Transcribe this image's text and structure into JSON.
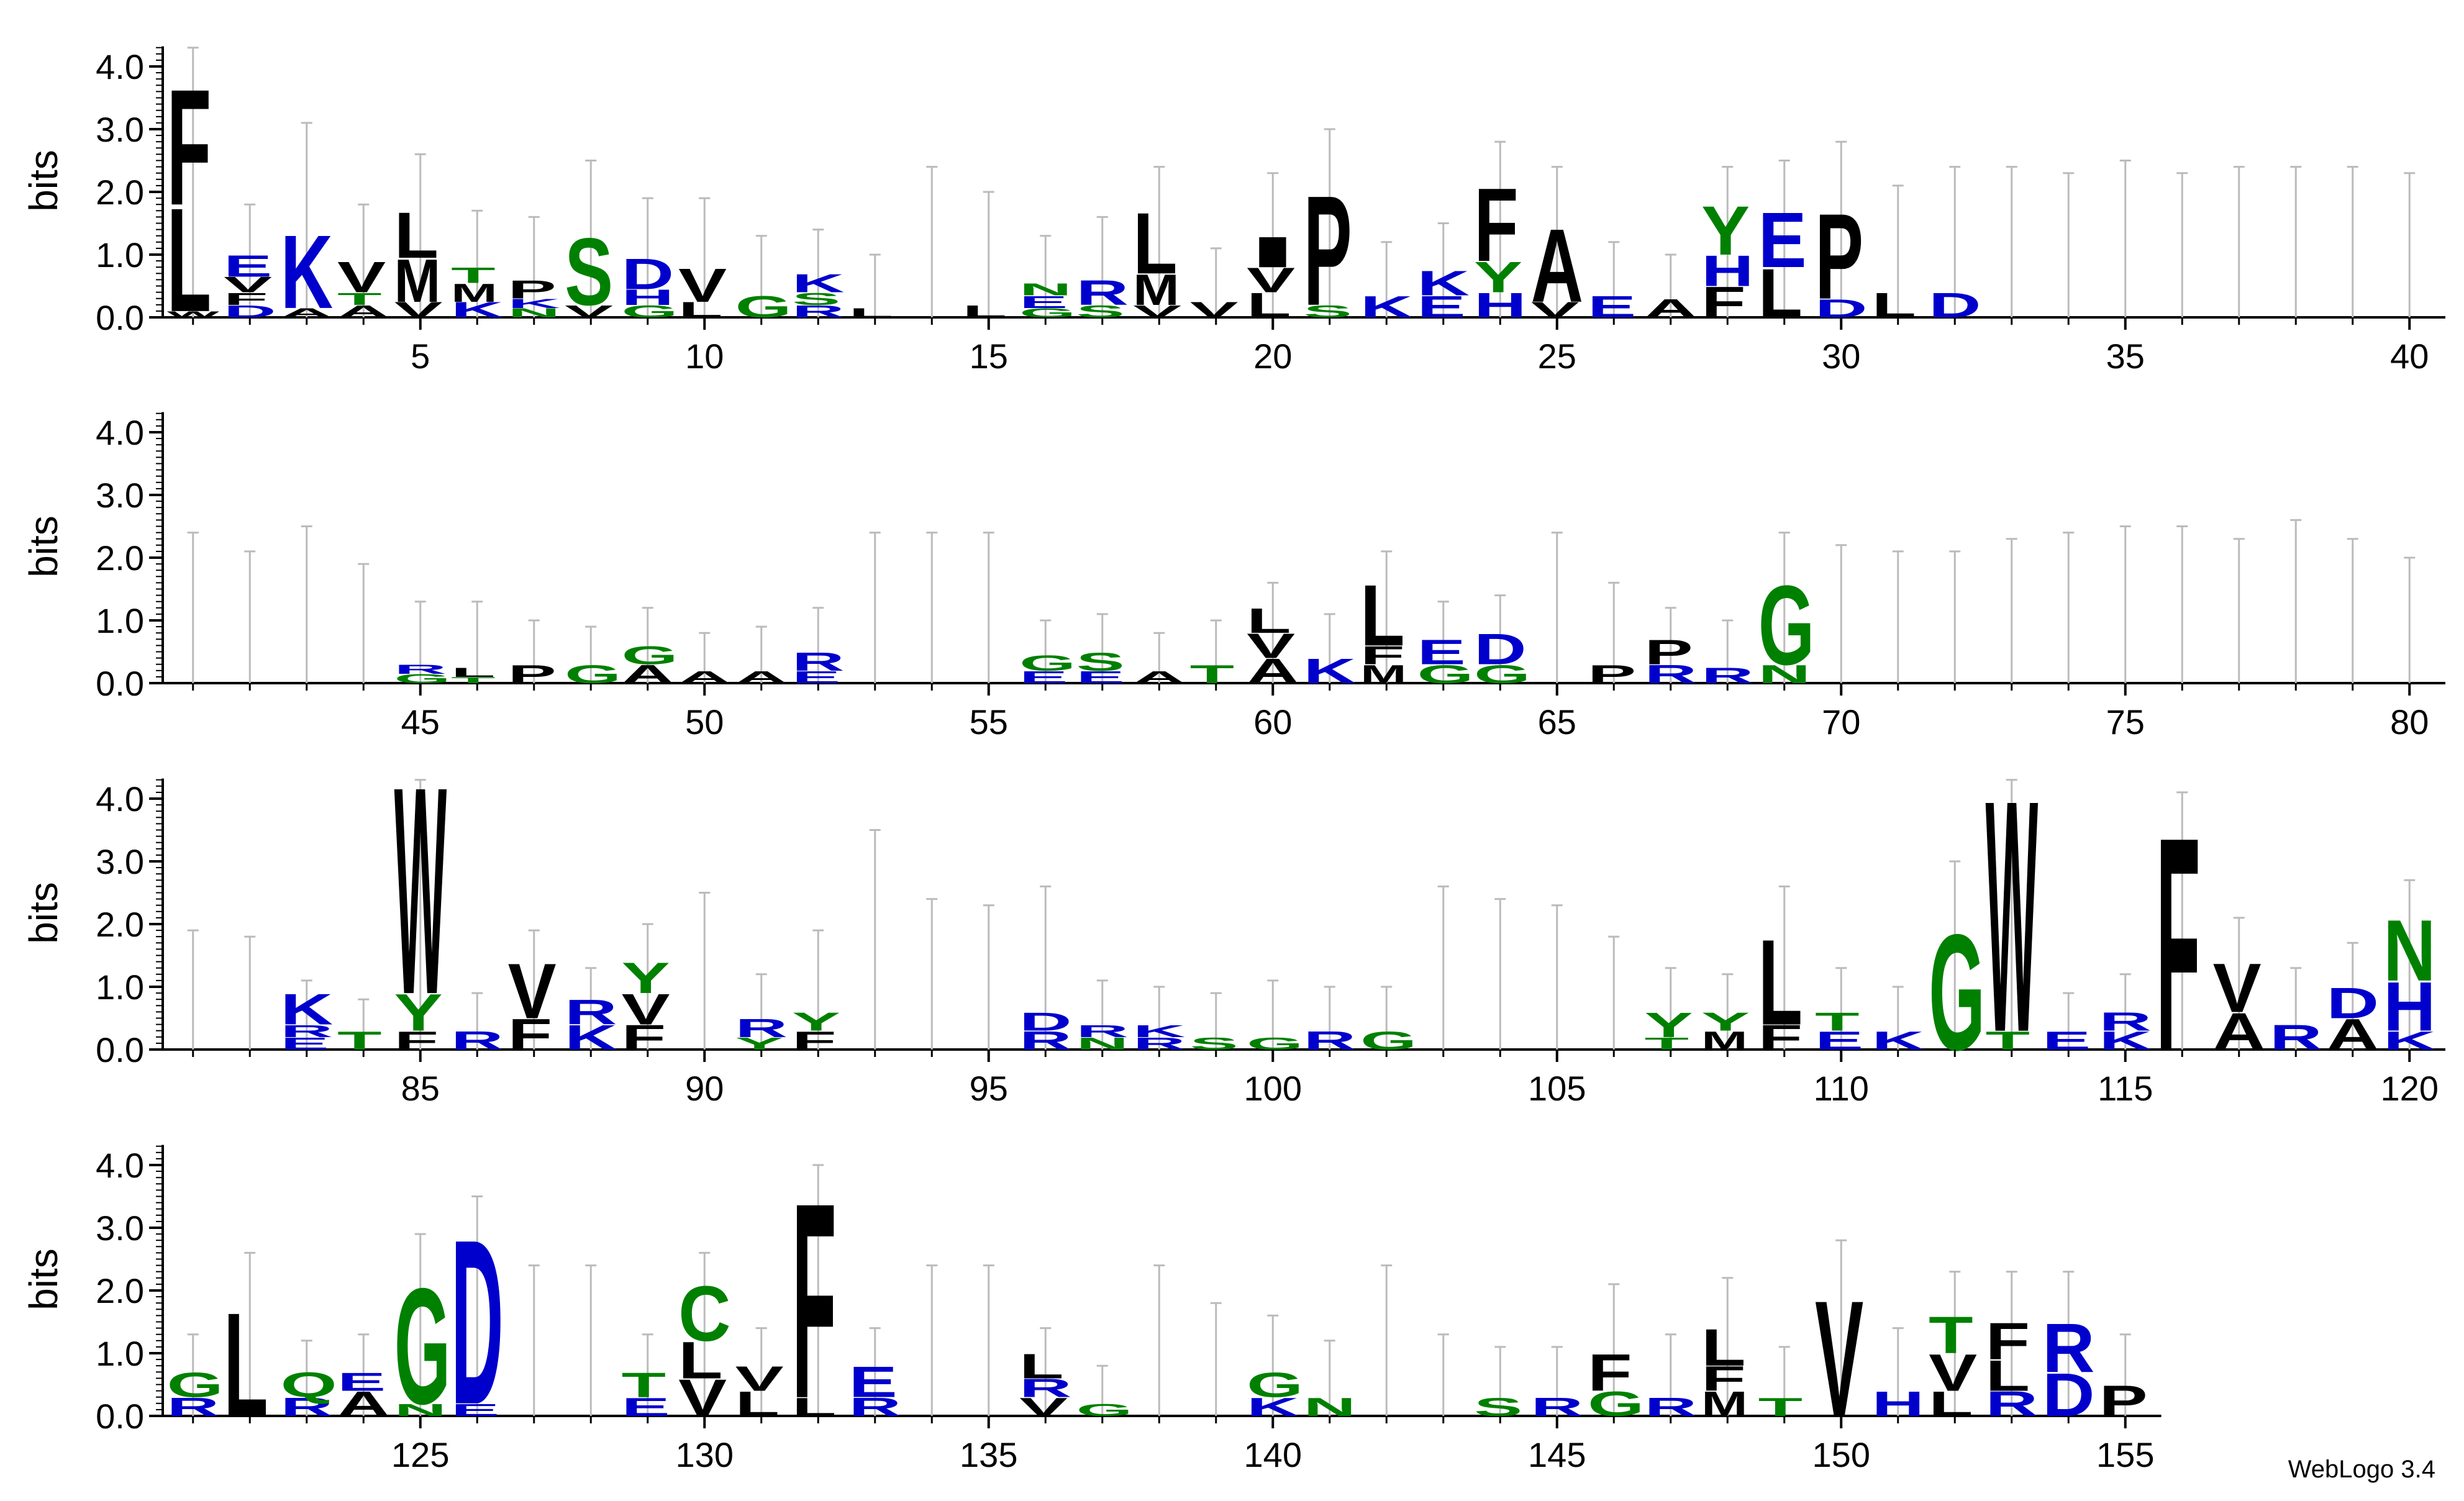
{
  "footer": "WebLogo 3.4",
  "chart_data": {
    "type": "sequence_logo",
    "ylabel": "bits",
    "ylim": [
      0,
      4.32
    ],
    "yticks": [
      "0.0",
      "1.0",
      "2.0",
      "3.0",
      "4.0"
    ],
    "colors": {
      "acidic_basic": "#0000cc",
      "polar": "#008000",
      "hydrophobic": "#000000",
      "error_bar": "#bbbbbb"
    },
    "rows": [
      {
        "start": 1,
        "end": 40,
        "xticks": [
          5,
          10,
          15,
          20,
          25,
          30,
          35,
          40
        ]
      },
      {
        "start": 41,
        "end": 80,
        "xticks": [
          45,
          50,
          55,
          60,
          65,
          70,
          75,
          80
        ]
      },
      {
        "start": 81,
        "end": 120,
        "xticks": [
          85,
          90,
          95,
          100,
          105,
          110,
          115,
          120
        ]
      },
      {
        "start": 121,
        "end": 155,
        "xticks": [
          125,
          130,
          135,
          140,
          145,
          150,
          155
        ]
      }
    ],
    "positions": {
      "1": [
        [
          "W",
          0.1
        ],
        [
          "L",
          1.7
        ],
        [
          "F",
          1.9
        ]
      ],
      "2": [
        [
          "D",
          0.2
        ],
        [
          "F",
          0.2
        ],
        [
          "V",
          0.25
        ],
        [
          "E",
          0.35
        ]
      ],
      "3": [
        [
          "A",
          0.15
        ],
        [
          "K",
          1.2
        ]
      ],
      "4": [
        [
          "A",
          0.2
        ],
        [
          "T",
          0.2
        ],
        [
          "V",
          0.5
        ]
      ],
      "5": [
        [
          "V",
          0.25
        ],
        [
          "M",
          0.7
        ],
        [
          "L",
          0.75
        ]
      ],
      "6": [
        [
          "K",
          0.25
        ],
        [
          "M",
          0.3
        ],
        [
          "T",
          0.25
        ]
      ],
      "7": [
        [
          "N",
          0.15
        ],
        [
          "K",
          0.15
        ],
        [
          "P",
          0.3
        ]
      ],
      "8": [
        [
          "V",
          0.2
        ],
        [
          "S",
          1.1
        ]
      ],
      "9": [
        [
          "G",
          0.2
        ],
        [
          "H",
          0.25
        ],
        [
          "D",
          0.5
        ]
      ],
      "10": [
        [
          "L",
          0.25
        ],
        [
          "V",
          0.55
        ]
      ],
      "11": [
        [
          "G",
          0.35
        ]
      ],
      "12": [
        [
          "R",
          0.2
        ],
        [
          "S",
          0.2
        ],
        [
          "K",
          0.3
        ]
      ],
      "13": [
        [
          "L",
          0.15
        ]
      ],
      "15": [
        [
          "L",
          0.2
        ]
      ],
      "16": [
        [
          "G",
          0.15
        ],
        [
          "E",
          0.2
        ],
        [
          "N",
          0.2
        ]
      ],
      "17": [
        [
          "S",
          0.2
        ],
        [
          "R",
          0.4
        ]
      ],
      "18": [
        [
          "V",
          0.2
        ],
        [
          "M",
          0.5
        ],
        [
          "L",
          1.0
        ]
      ],
      "19": [
        [
          "V",
          0.25
        ]
      ],
      "20": [
        [
          "L",
          0.4
        ],
        [
          "V",
          0.4
        ],
        [
          "I",
          0.5
        ]
      ],
      "21": [
        [
          "S",
          0.2
        ],
        [
          "P",
          1.8
        ]
      ],
      "22": [
        [
          "K",
          0.35
        ]
      ],
      "23": [
        [
          "E",
          0.35
        ],
        [
          "K",
          0.4
        ]
      ],
      "24": [
        [
          "H",
          0.4
        ],
        [
          "Y",
          0.5
        ],
        [
          "F",
          1.2
        ]
      ],
      "25": [
        [
          "V",
          0.25
        ],
        [
          "A",
          1.2
        ]
      ],
      "26": [
        [
          "E",
          0.35
        ]
      ],
      "27": [
        [
          "A",
          0.3
        ]
      ],
      "28": [
        [
          "F",
          0.5
        ],
        [
          "H",
          0.5
        ],
        [
          "Y",
          0.8
        ]
      ],
      "29": [
        [
          "L",
          0.8
        ],
        [
          "E",
          0.9
        ]
      ],
      "30": [
        [
          "D",
          0.3
        ],
        [
          "P",
          1.4
        ]
      ],
      "31": [
        [
          "L",
          0.4
        ]
      ],
      "32": [
        [
          "D",
          0.4
        ]
      ],
      "45": [
        [
          "G",
          0.15
        ],
        [
          "R",
          0.15
        ]
      ],
      "46": [
        [
          "T",
          0.1
        ],
        [
          "L",
          0.15
        ]
      ],
      "47": [
        [
          "P",
          0.3
        ]
      ],
      "48": [
        [
          "G",
          0.3
        ]
      ],
      "49": [
        [
          "A",
          0.3
        ],
        [
          "G",
          0.3
        ]
      ],
      "50": [
        [
          "A",
          0.2
        ]
      ],
      "51": [
        [
          "A",
          0.2
        ]
      ],
      "52": [
        [
          "E",
          0.2
        ],
        [
          "R",
          0.3
        ]
      ],
      "56": [
        [
          "E",
          0.2
        ],
        [
          "G",
          0.25
        ]
      ],
      "57": [
        [
          "E",
          0.2
        ],
        [
          "S",
          0.3
        ]
      ],
      "58": [
        [
          "A",
          0.2
        ]
      ],
      "59": [
        [
          "T",
          0.3
        ]
      ],
      "60": [
        [
          "A",
          0.4
        ],
        [
          "V",
          0.4
        ],
        [
          "L",
          0.4
        ]
      ],
      "61": [
        [
          "K",
          0.4
        ]
      ],
      "62": [
        [
          "M",
          0.3
        ],
        [
          "F",
          0.3
        ],
        [
          "L",
          1.0
        ]
      ],
      "63": [
        [
          "G",
          0.3
        ],
        [
          "E",
          0.4
        ]
      ],
      "64": [
        [
          "G",
          0.3
        ],
        [
          "D",
          0.5
        ]
      ],
      "66": [
        [
          "P",
          0.3
        ]
      ],
      "67": [
        [
          "R",
          0.3
        ],
        [
          "P",
          0.4
        ]
      ],
      "68": [
        [
          "R",
          0.25
        ]
      ],
      "69": [
        [
          "N",
          0.3
        ],
        [
          "G",
          1.3
        ]
      ],
      "83": [
        [
          "E",
          0.2
        ],
        [
          "R",
          0.2
        ],
        [
          "K",
          0.5
        ]
      ],
      "84": [
        [
          "T",
          0.3
        ]
      ],
      "85": [
        [
          "F",
          0.3
        ],
        [
          "Y",
          0.6
        ],
        [
          "W",
          3.4
        ]
      ],
      "86": [
        [
          "R",
          0.3
        ]
      ],
      "87": [
        [
          "F",
          0.5
        ],
        [
          "V",
          0.9
        ]
      ],
      "88": [
        [
          "K",
          0.4
        ],
        [
          "R",
          0.4
        ]
      ],
      "89": [
        [
          "F",
          0.4
        ],
        [
          "V",
          0.5
        ],
        [
          "Y",
          0.5
        ]
      ],
      "91": [
        [
          "Y",
          0.2
        ],
        [
          "R",
          0.3
        ]
      ],
      "92": [
        [
          "F",
          0.3
        ],
        [
          "Y",
          0.3
        ]
      ],
      "96": [
        [
          "R",
          0.3
        ],
        [
          "D",
          0.3
        ]
      ],
      "97": [
        [
          "N",
          0.2
        ],
        [
          "R",
          0.2
        ]
      ],
      "98": [
        [
          "R",
          0.2
        ],
        [
          "K",
          0.2
        ]
      ],
      "99": [
        [
          "S",
          0.2
        ]
      ],
      "100": [
        [
          "G",
          0.2
        ]
      ],
      "101": [
        [
          "R",
          0.3
        ]
      ],
      "102": [
        [
          "G",
          0.3
        ]
      ],
      "107": [
        [
          "T",
          0.2
        ],
        [
          "Y",
          0.4
        ]
      ],
      "108": [
        [
          "M",
          0.3
        ],
        [
          "Y",
          0.3
        ]
      ],
      "109": [
        [
          "F",
          0.4
        ],
        [
          "L",
          1.4
        ]
      ],
      "110": [
        [
          "E",
          0.3
        ],
        [
          "T",
          0.3
        ]
      ],
      "111": [
        [
          "K",
          0.3
        ]
      ],
      "112": [
        [
          "G",
          1.9
        ]
      ],
      "113": [
        [
          "T",
          0.3
        ],
        [
          "W",
          3.8
        ]
      ],
      "114": [
        [
          "E",
          0.3
        ]
      ],
      "115": [
        [
          "K",
          0.3
        ],
        [
          "R",
          0.3
        ]
      ],
      "116": [
        [
          "F",
          3.5
        ]
      ],
      "117": [
        [
          "A",
          0.6
        ],
        [
          "V",
          0.8
        ]
      ],
      "118": [
        [
          "R",
          0.4
        ]
      ],
      "119": [
        [
          "A",
          0.5
        ],
        [
          "D",
          0.5
        ]
      ],
      "120": [
        [
          "K",
          0.3
        ],
        [
          "H",
          0.8
        ],
        [
          "N",
          1.0
        ]
      ],
      "121": [
        [
          "R",
          0.3
        ],
        [
          "G",
          0.4
        ]
      ],
      "122": [
        [
          "L",
          1.7
        ]
      ],
      "123": [
        [
          "R",
          0.3
        ],
        [
          "Q",
          0.4
        ]
      ],
      "124": [
        [
          "A",
          0.4
        ],
        [
          "E",
          0.3
        ]
      ],
      "125": [
        [
          "N",
          0.2
        ],
        [
          "G",
          1.9
        ]
      ],
      "126": [
        [
          "E",
          0.2
        ],
        [
          "D",
          2.7
        ]
      ],
      "129": [
        [
          "E",
          0.3
        ],
        [
          "T",
          0.4
        ]
      ],
      "130": [
        [
          "V",
          0.6
        ],
        [
          "L",
          0.6
        ],
        [
          "C",
          0.9
        ]
      ],
      "131": [
        [
          "L",
          0.4
        ],
        [
          "V",
          0.4
        ]
      ],
      "132": [
        [
          "L",
          0.3
        ],
        [
          "F",
          3.2
        ]
      ],
      "133": [
        [
          "R",
          0.3
        ],
        [
          "E",
          0.5
        ]
      ],
      "136": [
        [
          "V",
          0.3
        ],
        [
          "R",
          0.3
        ],
        [
          "L",
          0.4
        ]
      ],
      "137": [
        [
          "G",
          0.2
        ]
      ],
      "140": [
        [
          "K",
          0.3
        ],
        [
          "G",
          0.4
        ]
      ],
      "141": [
        [
          "N",
          0.3
        ]
      ],
      "144": [
        [
          "S",
          0.3
        ]
      ],
      "145": [
        [
          "R",
          0.3
        ]
      ],
      "146": [
        [
          "G",
          0.4
        ],
        [
          "F",
          0.6
        ]
      ],
      "147": [
        [
          "R",
          0.3
        ]
      ],
      "148": [
        [
          "M",
          0.4
        ],
        [
          "F",
          0.4
        ],
        [
          "L",
          0.6
        ]
      ],
      "149": [
        [
          "T",
          0.3
        ]
      ],
      "150": [
        [
          "V",
          1.9
        ]
      ],
      "151": [
        [
          "H",
          0.4
        ]
      ],
      "152": [
        [
          "L",
          0.4
        ],
        [
          "V",
          0.6
        ],
        [
          "T",
          0.6
        ]
      ],
      "153": [
        [
          "R",
          0.4
        ],
        [
          "L",
          0.5
        ],
        [
          "F",
          0.6
        ]
      ],
      "154": [
        [
          "D",
          0.7
        ],
        [
          "R",
          0.8
        ]
      ],
      "155": [
        [
          "P",
          0.5
        ]
      ]
    },
    "error_tops": {
      "1": 4.3,
      "2": 1.8,
      "3": 3.1,
      "4": 1.8,
      "5": 2.6,
      "6": 1.7,
      "7": 1.6,
      "8": 2.5,
      "9": 1.9,
      "10": 1.9,
      "11": 1.3,
      "12": 1.4,
      "13": 1.0,
      "14": 2.4,
      "15": 2.0,
      "16": 1.3,
      "17": 1.6,
      "18": 2.4,
      "19": 1.1,
      "20": 2.3,
      "21": 3.0,
      "22": 1.2,
      "23": 1.5,
      "24": 2.8,
      "25": 2.4,
      "26": 1.2,
      "27": 1.0,
      "28": 2.4,
      "29": 2.5,
      "30": 2.8,
      "31": 2.1,
      "32": 2.4,
      "33": 2.4,
      "34": 2.3,
      "35": 2.5,
      "36": 2.3,
      "37": 2.4,
      "38": 2.4,
      "39": 2.4,
      "40": 2.3,
      "41": 2.4,
      "42": 2.1,
      "43": 2.5,
      "44": 1.9,
      "45": 1.3,
      "46": 1.3,
      "47": 1.0,
      "48": 0.9,
      "49": 1.2,
      "50": 0.8,
      "51": 0.9,
      "52": 1.2,
      "53": 2.4,
      "54": 2.4,
      "55": 2.4,
      "56": 1.0,
      "57": 1.1,
      "58": 0.8,
      "59": 1.0,
      "60": 1.6,
      "61": 1.1,
      "62": 2.1,
      "63": 1.3,
      "64": 1.4,
      "65": 2.4,
      "66": 1.6,
      "67": 1.2,
      "68": 1.0,
      "69": 2.4,
      "70": 2.2,
      "71": 2.1,
      "72": 2.1,
      "73": 2.3,
      "74": 2.4,
      "75": 2.5,
      "76": 2.5,
      "77": 2.3,
      "78": 2.6,
      "79": 2.3,
      "80": 2.0,
      "81": 1.9,
      "82": 1.8,
      "83": 1.1,
      "84": 0.8,
      "85": 4.3,
      "86": 0.9,
      "87": 1.9,
      "88": 1.3,
      "89": 2.0,
      "90": 2.5,
      "91": 1.2,
      "92": 1.9,
      "93": 3.5,
      "94": 2.4,
      "95": 2.3,
      "96": 2.6,
      "97": 1.1,
      "98": 1.0,
      "99": 0.9,
      "100": 1.1,
      "101": 1.0,
      "102": 1.0,
      "103": 2.6,
      "104": 2.4,
      "105": 2.3,
      "106": 1.8,
      "107": 1.3,
      "108": 1.2,
      "109": 2.6,
      "110": 1.3,
      "111": 1.0,
      "112": 3.0,
      "113": 4.3,
      "114": 0.9,
      "115": 1.2,
      "116": 4.1,
      "117": 2.1,
      "118": 1.3,
      "119": 1.7,
      "120": 2.7,
      "121": 1.3,
      "122": 2.6,
      "123": 1.2,
      "124": 1.3,
      "125": 2.9,
      "126": 3.5,
      "127": 2.4,
      "128": 2.4,
      "129": 1.3,
      "130": 2.6,
      "131": 1.4,
      "132": 4.0,
      "133": 1.4,
      "134": 2.4,
      "135": 2.4,
      "136": 1.4,
      "137": 0.8,
      "138": 2.4,
      "139": 1.8,
      "140": 1.6,
      "141": 1.2,
      "142": 2.4,
      "143": 1.3,
      "144": 1.1,
      "145": 1.1,
      "146": 2.1,
      "147": 1.3,
      "148": 2.2,
      "149": 1.1,
      "150": 2.8,
      "151": 1.4,
      "152": 2.3,
      "153": 2.3,
      "154": 2.3,
      "155": 1.3
    }
  }
}
